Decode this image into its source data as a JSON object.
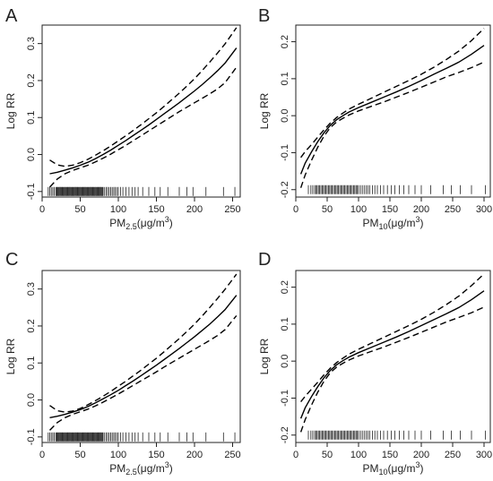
{
  "chart_data": [
    {
      "panel": "A",
      "type": "line",
      "xlabel": "PM2.5(μg/m3)",
      "xlabel_parts": {
        "main": "PM",
        "sub": "2.5",
        "unit_open": "(μg/m",
        "sup": "3",
        "unit_close": ")"
      },
      "ylabel": "Log RR",
      "xlim": [
        0,
        260
      ],
      "ylim": [
        -0.115,
        0.35
      ],
      "xticks": [
        0,
        50,
        100,
        150,
        200,
        250
      ],
      "yticks": [
        -0.1,
        0.0,
        0.1,
        0.2,
        0.3
      ],
      "ytick_labels": [
        "-0.1",
        "0.0",
        "0.1",
        "0.2",
        "0.3"
      ],
      "rug_y": -0.1,
      "rug_x": [
        8,
        10,
        12,
        14,
        16,
        18,
        19,
        20,
        21,
        22,
        23,
        24,
        25,
        26,
        27,
        28,
        29,
        30,
        31,
        32,
        33,
        34,
        35,
        36,
        37,
        38,
        39,
        40,
        41,
        42,
        43,
        44,
        45,
        46,
        47,
        48,
        49,
        50,
        51,
        52,
        53,
        54,
        55,
        56,
        57,
        58,
        59,
        60,
        61,
        62,
        63,
        64,
        65,
        66,
        67,
        68,
        69,
        70,
        71,
        72,
        73,
        74,
        75,
        76,
        77,
        78,
        79,
        80,
        82,
        84,
        86,
        88,
        90,
        92,
        94,
        96,
        98,
        100,
        103,
        106,
        110,
        114,
        118,
        122,
        126,
        132,
        140,
        148,
        155,
        165,
        180,
        190,
        198,
        215,
        238,
        253
      ],
      "series": [
        {
          "style": "solid",
          "x": [
            10,
            20,
            30,
            40,
            50,
            60,
            70,
            80,
            90,
            100,
            110,
            120,
            130,
            140,
            150,
            160,
            170,
            180,
            190,
            200,
            210,
            220,
            230,
            240,
            255
          ],
          "y": [
            -0.052,
            -0.048,
            -0.042,
            -0.036,
            -0.029,
            -0.021,
            -0.011,
            0.0,
            0.012,
            0.025,
            0.038,
            0.052,
            0.066,
            0.08,
            0.095,
            0.11,
            0.125,
            0.14,
            0.156,
            0.172,
            0.189,
            0.207,
            0.226,
            0.247,
            0.288
          ]
        },
        {
          "style": "dashed",
          "x": [
            10,
            20,
            30,
            40,
            50,
            60,
            70,
            80,
            90,
            100,
            110,
            120,
            130,
            140,
            150,
            160,
            170,
            180,
            190,
            200,
            210,
            220,
            230,
            240,
            255
          ],
          "y": [
            -0.015,
            -0.028,
            -0.032,
            -0.029,
            -0.022,
            -0.013,
            -0.002,
            0.01,
            0.023,
            0.037,
            0.051,
            0.066,
            0.081,
            0.097,
            0.113,
            0.13,
            0.148,
            0.166,
            0.185,
            0.205,
            0.227,
            0.25,
            0.274,
            0.299,
            0.343
          ]
        },
        {
          "style": "dashed",
          "x": [
            10,
            20,
            30,
            40,
            50,
            60,
            70,
            80,
            90,
            100,
            110,
            120,
            130,
            140,
            150,
            160,
            170,
            180,
            190,
            200,
            210,
            220,
            230,
            240,
            255
          ],
          "y": [
            -0.088,
            -0.066,
            -0.052,
            -0.043,
            -0.036,
            -0.029,
            -0.02,
            -0.01,
            0.001,
            0.013,
            0.025,
            0.038,
            0.051,
            0.064,
            0.077,
            0.09,
            0.103,
            0.116,
            0.128,
            0.14,
            0.152,
            0.164,
            0.177,
            0.194,
            0.236
          ]
        }
      ]
    },
    {
      "panel": "B",
      "type": "line",
      "xlabel": "PM10(μg/m3)",
      "xlabel_parts": {
        "main": "PM",
        "sub": "10",
        "unit_open": "(μg/m",
        "sup": "3",
        "unit_close": ")"
      },
      "ylabel": "Log RR",
      "xlim": [
        0,
        310
      ],
      "ylim": [
        -0.22,
        0.245
      ],
      "xticks": [
        0,
        50,
        100,
        150,
        200,
        250,
        300
      ],
      "yticks": [
        -0.2,
        -0.1,
        0.0,
        0.1,
        0.2
      ],
      "ytick_labels": [
        "-0.2",
        "-0.1",
        "0.0",
        "0.1",
        "0.2"
      ],
      "rug_y": -0.2,
      "rug_x": [
        20,
        24,
        27,
        30,
        32,
        34,
        36,
        38,
        40,
        42,
        44,
        46,
        48,
        50,
        52,
        54,
        56,
        58,
        60,
        62,
        64,
        66,
        68,
        70,
        72,
        74,
        76,
        78,
        80,
        82,
        84,
        86,
        88,
        90,
        92,
        94,
        96,
        98,
        100,
        103,
        106,
        109,
        112,
        115,
        118,
        122,
        126,
        130,
        135,
        140,
        146,
        152,
        158,
        165,
        172,
        180,
        190,
        200,
        215,
        235,
        248,
        262,
        280,
        302
      ],
      "series": [
        {
          "style": "solid",
          "x": [
            8,
            15,
            25,
            35,
            45,
            55,
            65,
            75,
            85,
            100,
            120,
            140,
            160,
            180,
            200,
            220,
            240,
            260,
            280,
            300
          ],
          "y": [
            -0.158,
            -0.128,
            -0.098,
            -0.07,
            -0.046,
            -0.026,
            -0.011,
            0.0,
            0.01,
            0.022,
            0.036,
            0.05,
            0.064,
            0.079,
            0.095,
            0.112,
            0.128,
            0.145,
            0.166,
            0.19
          ]
        },
        {
          "style": "dashed",
          "x": [
            8,
            15,
            25,
            35,
            45,
            55,
            65,
            75,
            85,
            100,
            120,
            140,
            160,
            180,
            200,
            220,
            240,
            260,
            280,
            300
          ],
          "y": [
            -0.113,
            -0.097,
            -0.078,
            -0.058,
            -0.038,
            -0.02,
            -0.005,
            0.007,
            0.018,
            0.031,
            0.047,
            0.063,
            0.079,
            0.095,
            0.112,
            0.131,
            0.152,
            0.175,
            0.203,
            0.236
          ]
        },
        {
          "style": "dashed",
          "x": [
            8,
            15,
            25,
            35,
            45,
            55,
            65,
            75,
            85,
            100,
            120,
            140,
            160,
            180,
            200,
            220,
            240,
            260,
            280,
            300
          ],
          "y": [
            -0.195,
            -0.16,
            -0.121,
            -0.085,
            -0.055,
            -0.032,
            -0.017,
            -0.007,
            0.002,
            0.013,
            0.025,
            0.037,
            0.05,
            0.063,
            0.077,
            0.091,
            0.105,
            0.117,
            0.13,
            0.145
          ]
        }
      ]
    },
    {
      "panel": "C",
      "type": "line",
      "xlabel": "PM2.5(μg/m3)",
      "xlabel_parts": {
        "main": "PM",
        "sub": "2.5",
        "unit_open": "(μg/m",
        "sup": "3",
        "unit_close": ")"
      },
      "ylabel": "Log RR",
      "xlim": [
        0,
        260
      ],
      "ylim": [
        -0.115,
        0.35
      ],
      "xticks": [
        0,
        50,
        100,
        150,
        200,
        250
      ],
      "yticks": [
        -0.1,
        0.0,
        0.1,
        0.2,
        0.3
      ],
      "ytick_labels": [
        "-0.1",
        "0.0",
        "0.1",
        "0.2",
        "0.3"
      ],
      "rug_y": -0.1,
      "rug_x": [
        8,
        10,
        12,
        14,
        16,
        18,
        19,
        20,
        21,
        22,
        23,
        24,
        25,
        26,
        27,
        28,
        29,
        30,
        31,
        32,
        33,
        34,
        35,
        36,
        37,
        38,
        39,
        40,
        41,
        42,
        43,
        44,
        45,
        46,
        47,
        48,
        49,
        50,
        51,
        52,
        53,
        54,
        55,
        56,
        57,
        58,
        59,
        60,
        61,
        62,
        63,
        64,
        65,
        66,
        67,
        68,
        69,
        70,
        71,
        72,
        73,
        74,
        75,
        76,
        77,
        78,
        79,
        80,
        82,
        84,
        86,
        88,
        90,
        92,
        94,
        96,
        98,
        100,
        103,
        106,
        110,
        114,
        118,
        122,
        126,
        132,
        140,
        148,
        155,
        165,
        180,
        190,
        198,
        215,
        238,
        253
      ],
      "series": [
        {
          "style": "solid",
          "x": [
            10,
            20,
            30,
            40,
            50,
            60,
            70,
            80,
            90,
            100,
            110,
            120,
            130,
            140,
            150,
            160,
            170,
            180,
            190,
            200,
            210,
            220,
            230,
            240,
            255
          ],
          "y": [
            -0.048,
            -0.044,
            -0.039,
            -0.033,
            -0.026,
            -0.018,
            -0.008,
            0.003,
            0.014,
            0.026,
            0.039,
            0.052,
            0.066,
            0.08,
            0.094,
            0.109,
            0.124,
            0.139,
            0.155,
            0.171,
            0.188,
            0.205,
            0.224,
            0.244,
            0.283
          ]
        },
        {
          "style": "dashed",
          "x": [
            10,
            20,
            30,
            40,
            50,
            60,
            70,
            80,
            90,
            100,
            110,
            120,
            130,
            140,
            150,
            160,
            170,
            180,
            190,
            200,
            210,
            220,
            230,
            240,
            255
          ],
          "y": [
            -0.015,
            -0.029,
            -0.033,
            -0.03,
            -0.023,
            -0.013,
            -0.002,
            0.01,
            0.023,
            0.037,
            0.051,
            0.066,
            0.081,
            0.097,
            0.113,
            0.13,
            0.148,
            0.166,
            0.185,
            0.205,
            0.227,
            0.25,
            0.274,
            0.299,
            0.34
          ]
        },
        {
          "style": "dashed",
          "x": [
            10,
            20,
            30,
            40,
            50,
            60,
            70,
            80,
            90,
            100,
            110,
            120,
            130,
            140,
            150,
            160,
            170,
            180,
            190,
            200,
            210,
            220,
            230,
            240,
            255
          ],
          "y": [
            -0.082,
            -0.061,
            -0.048,
            -0.039,
            -0.032,
            -0.025,
            -0.016,
            -0.006,
            0.005,
            0.016,
            0.028,
            0.04,
            0.052,
            0.064,
            0.076,
            0.089,
            0.101,
            0.113,
            0.125,
            0.137,
            0.149,
            0.161,
            0.174,
            0.19,
            0.228
          ]
        }
      ]
    },
    {
      "panel": "D",
      "type": "line",
      "xlabel": "PM10(μg/m3)",
      "xlabel_parts": {
        "main": "PM",
        "sub": "10",
        "unit_open": "(μg/m",
        "sup": "3",
        "unit_close": ")"
      },
      "ylabel": "Log RR",
      "xlim": [
        0,
        310
      ],
      "ylim": [
        -0.22,
        0.245
      ],
      "xticks": [
        0,
        50,
        100,
        150,
        200,
        250,
        300
      ],
      "yticks": [
        -0.2,
        -0.1,
        0.0,
        0.1,
        0.2
      ],
      "ytick_labels": [
        "-0.2",
        "-0.1",
        "0.0",
        "0.1",
        "0.2"
      ],
      "rug_y": -0.2,
      "rug_x": [
        20,
        24,
        27,
        30,
        32,
        34,
        36,
        38,
        40,
        42,
        44,
        46,
        48,
        50,
        52,
        54,
        56,
        58,
        60,
        62,
        64,
        66,
        68,
        70,
        72,
        74,
        76,
        78,
        80,
        82,
        84,
        86,
        88,
        90,
        92,
        94,
        96,
        98,
        100,
        103,
        106,
        109,
        112,
        115,
        118,
        122,
        126,
        130,
        135,
        140,
        146,
        152,
        158,
        165,
        172,
        180,
        190,
        200,
        215,
        235,
        248,
        262,
        280,
        302
      ],
      "series": [
        {
          "style": "solid",
          "x": [
            8,
            15,
            25,
            35,
            45,
            55,
            65,
            75,
            85,
            100,
            120,
            140,
            160,
            180,
            200,
            220,
            240,
            260,
            280,
            300
          ],
          "y": [
            -0.155,
            -0.126,
            -0.096,
            -0.069,
            -0.045,
            -0.025,
            -0.01,
            0.001,
            0.011,
            0.023,
            0.037,
            0.051,
            0.065,
            0.08,
            0.096,
            0.112,
            0.128,
            0.145,
            0.166,
            0.19
          ]
        },
        {
          "style": "dashed",
          "x": [
            8,
            15,
            25,
            35,
            45,
            55,
            65,
            75,
            85,
            100,
            120,
            140,
            160,
            180,
            200,
            220,
            240,
            260,
            280,
            300
          ],
          "y": [
            -0.11,
            -0.095,
            -0.076,
            -0.057,
            -0.037,
            -0.019,
            -0.004,
            0.008,
            0.019,
            0.032,
            0.048,
            0.064,
            0.08,
            0.096,
            0.113,
            0.132,
            0.153,
            0.176,
            0.204,
            0.236
          ]
        },
        {
          "style": "dashed",
          "x": [
            8,
            15,
            25,
            35,
            45,
            55,
            65,
            75,
            85,
            100,
            120,
            140,
            160,
            180,
            200,
            220,
            240,
            260,
            280,
            300
          ],
          "y": [
            -0.192,
            -0.158,
            -0.119,
            -0.084,
            -0.054,
            -0.031,
            -0.016,
            -0.006,
            0.003,
            0.014,
            0.026,
            0.038,
            0.051,
            0.064,
            0.078,
            0.092,
            0.106,
            0.118,
            0.131,
            0.146
          ]
        }
      ]
    }
  ]
}
